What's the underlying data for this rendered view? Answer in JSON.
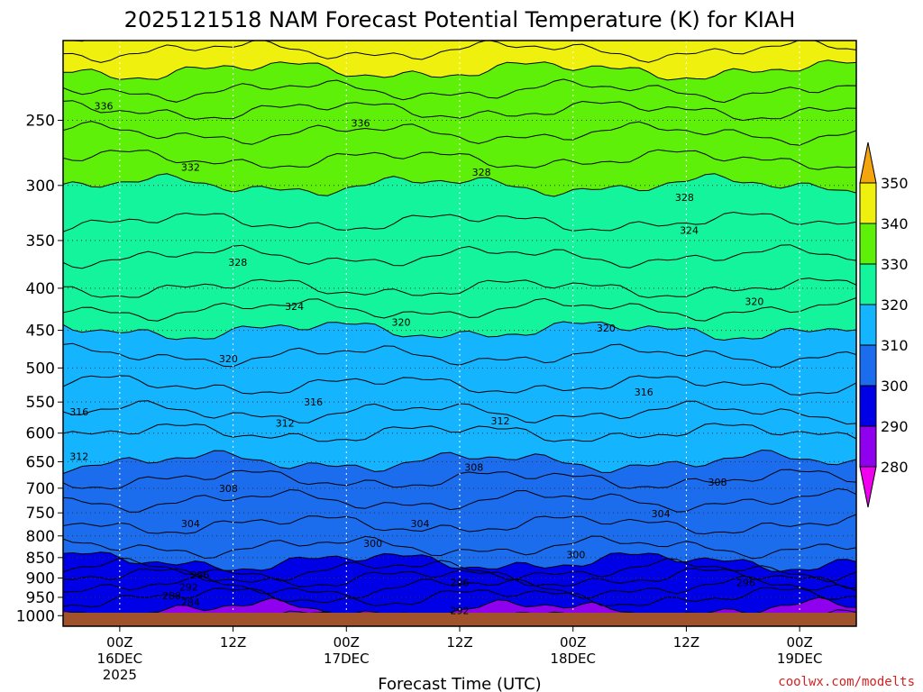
{
  "chart_data": {
    "type": "heatmap",
    "title": "2025121518 NAM Forecast Potential Temperature (K) for KIAH",
    "xlabel": "Forecast Time (UTC)",
    "ylabel": "",
    "x_ticks": [
      {
        "hour": 6,
        "label": "00Z",
        "sub1": "16DEC",
        "sub2": "2025"
      },
      {
        "hour": 18,
        "label": "12Z",
        "sub1": "",
        "sub2": ""
      },
      {
        "hour": 30,
        "label": "00Z",
        "sub1": "17DEC",
        "sub2": ""
      },
      {
        "hour": 42,
        "label": "12Z",
        "sub1": "",
        "sub2": ""
      },
      {
        "hour": 54,
        "label": "00Z",
        "sub1": "18DEC",
        "sub2": ""
      },
      {
        "hour": 66,
        "label": "12Z",
        "sub1": "",
        "sub2": ""
      },
      {
        "hour": 78,
        "label": "00Z",
        "sub1": "19DEC",
        "sub2": ""
      }
    ],
    "xlim": [
      0,
      84
    ],
    "y_ticks": [
      250,
      300,
      350,
      400,
      450,
      500,
      550,
      600,
      650,
      700,
      750,
      800,
      850,
      900,
      950,
      1000
    ],
    "ylim": [
      1030,
      200
    ],
    "y_scale": "log-pressure",
    "grid": true,
    "colorbar": {
      "ticks": [
        "350",
        "340",
        "330",
        "320",
        "310",
        "300",
        "290",
        "280"
      ],
      "bands": [
        {
          "from": 280,
          "to": 290,
          "color": "#8f00ee"
        },
        {
          "from": 290,
          "to": 300,
          "color": "#0000e6"
        },
        {
          "from": 300,
          "to": 310,
          "color": "#1c6ded"
        },
        {
          "from": 310,
          "to": 320,
          "color": "#14b4ff"
        },
        {
          "from": 320,
          "to": 330,
          "color": "#13f49d"
        },
        {
          "from": 330,
          "to": 340,
          "color": "#5ff00a"
        },
        {
          "from": 340,
          "to": 350,
          "color": "#f0f00f"
        }
      ],
      "under_color": "#ef00ef",
      "over_color": "#f4a40c"
    },
    "theta_profile": {
      "pressure": [
        1000,
        950,
        900,
        850,
        800,
        750,
        700,
        650,
        600,
        550,
        500,
        450,
        400,
        350,
        300,
        250,
        200
      ],
      "theta": [
        289,
        292,
        296,
        301,
        303,
        305,
        307,
        310,
        312,
        315,
        317,
        320,
        324,
        327,
        330,
        335,
        343
      ]
    },
    "contour_labels": [
      {
        "text": "336",
        "hour": 4.3,
        "p": 240
      },
      {
        "text": "336",
        "hour": 31.5,
        "p": 252
      },
      {
        "text": "332",
        "hour": 13.5,
        "p": 285
      },
      {
        "text": "328",
        "hour": 18.5,
        "p": 372
      },
      {
        "text": "328",
        "hour": 44.3,
        "p": 289
      },
      {
        "text": "328",
        "hour": 65.8,
        "p": 310
      },
      {
        "text": "324",
        "hour": 24.5,
        "p": 421
      },
      {
        "text": "324",
        "hour": 66.3,
        "p": 340
      },
      {
        "text": "320",
        "hour": 17.5,
        "p": 487
      },
      {
        "text": "320",
        "hour": 35.8,
        "p": 440
      },
      {
        "text": "320",
        "hour": 57.5,
        "p": 447
      },
      {
        "text": "320",
        "hour": 73.2,
        "p": 415
      },
      {
        "text": "316",
        "hour": 1.7,
        "p": 565
      },
      {
        "text": "316",
        "hour": 26.5,
        "p": 550
      },
      {
        "text": "316",
        "hour": 61.5,
        "p": 535
      },
      {
        "text": "312",
        "hour": 1.7,
        "p": 640
      },
      {
        "text": "312",
        "hour": 23.5,
        "p": 583
      },
      {
        "text": "312",
        "hour": 46.3,
        "p": 580
      },
      {
        "text": "308",
        "hour": 17.5,
        "p": 700
      },
      {
        "text": "308",
        "hour": 43.5,
        "p": 660
      },
      {
        "text": "308",
        "hour": 69.3,
        "p": 688
      },
      {
        "text": "304",
        "hour": 13.5,
        "p": 773
      },
      {
        "text": "304",
        "hour": 37.8,
        "p": 773
      },
      {
        "text": "304",
        "hour": 63.3,
        "p": 752
      },
      {
        "text": "300",
        "hour": 32.8,
        "p": 817
      },
      {
        "text": "300",
        "hour": 54.3,
        "p": 843
      },
      {
        "text": "296",
        "hour": 14.5,
        "p": 892
      },
      {
        "text": "296",
        "hour": 42.0,
        "p": 912
      },
      {
        "text": "296",
        "hour": 72.3,
        "p": 912
      },
      {
        "text": "292",
        "hour": 13.3,
        "p": 923
      },
      {
        "text": "292",
        "hour": 42.0,
        "p": 985
      },
      {
        "text": "288",
        "hour": 11.5,
        "p": 945
      },
      {
        "text": "284",
        "hour": 13.5,
        "p": 963
      }
    ],
    "credit": "coolwx.com/modelts"
  }
}
